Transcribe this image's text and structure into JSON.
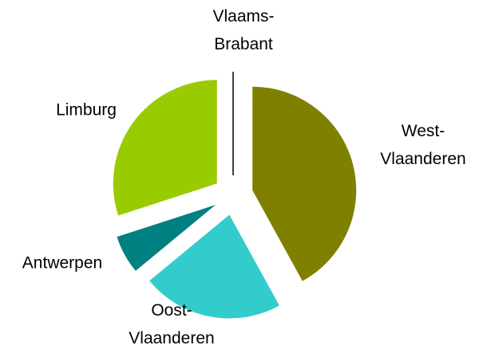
{
  "chart_data": {
    "type": "pie",
    "categories": [
      "West-Vlaanderen",
      "Oost-Vlaanderen",
      "Antwerpen",
      "Limburg",
      "Vlaams-Brabant"
    ],
    "values": [
      42,
      22,
      6,
      30,
      0
    ],
    "colors": [
      "#808000",
      "#33cccc",
      "#008080",
      "#99cc00",
      "#000000"
    ],
    "exploded": true
  }
}
